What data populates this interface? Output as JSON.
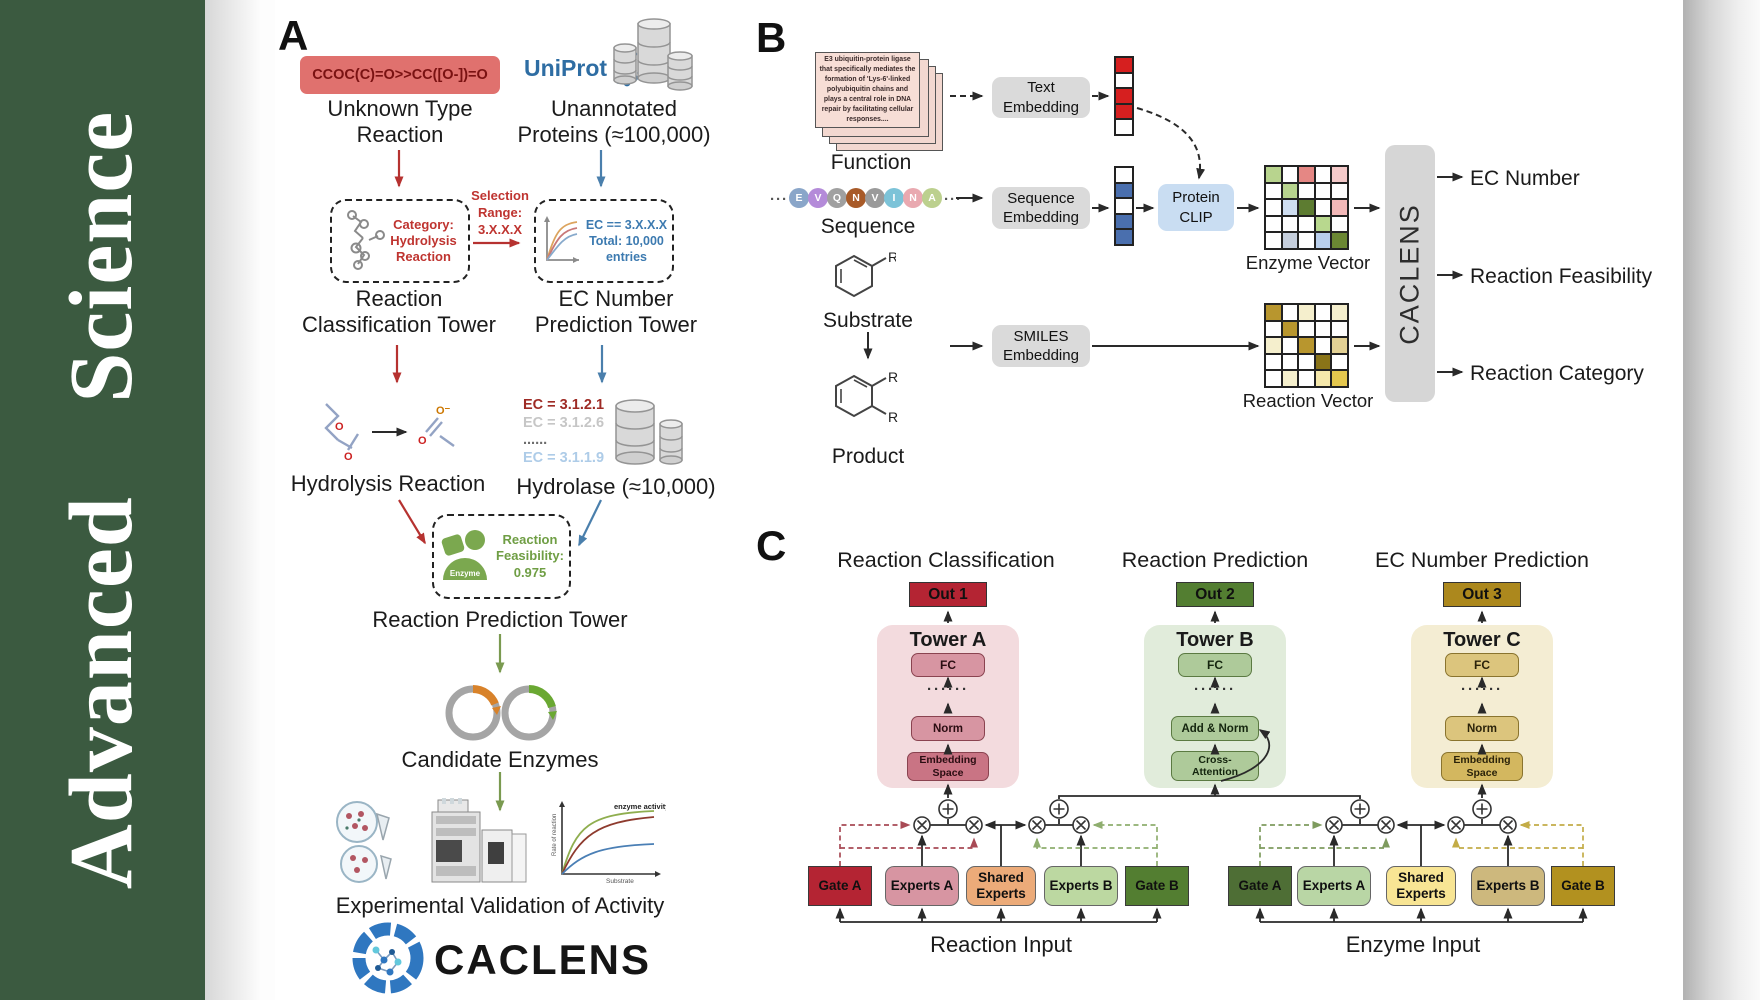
{
  "journal": {
    "title": "Advanced Science"
  },
  "panelA": {
    "label": "A",
    "smiles": "CCOC(C)=O>>CC([O-])=O",
    "unknown_reaction": "Unknown Type\nReaction",
    "uniprot": "UniProt",
    "unannotated": "Unannotated\nProteins (≈100,000)",
    "category_text": "Category:\nHydrolysis\nReaction",
    "selection_text": "Selection\nRange:\n3.X.X.X",
    "ec_box_text": "EC == 3.X.X.X\nTotal: 10,000\nentries",
    "classification_tower": "Reaction\nClassification Tower",
    "ec_tower": "EC Number\nPrediction Tower",
    "hydrolysis": "Hydrolysis Reaction",
    "ec_list": [
      {
        "text": "EC = 3.1.2.1",
        "color": "#9e2b25"
      },
      {
        "text": "EC = 3.1.2.6",
        "color": "#c6c6c6"
      },
      {
        "text": "......",
        "color": "#6d6d6d"
      },
      {
        "text": "EC = 3.1.1.9",
        "color": "#aecce8"
      }
    ],
    "hydrolase": "Hydrolase (≈10,000)",
    "enzyme_icon_label": "Enzyme",
    "feasibility_text": "Reaction\nFeasibility:\n0.975",
    "prediction_tower": "Reaction Prediction Tower",
    "candidates": "Candidate Enzymes",
    "activity_graph": {
      "title": "enzyme activity",
      "ylabel": "Rate of reaction",
      "xlabel": "Substrate"
    },
    "validation": "Experimental Validation of Activity",
    "brand": "CACLENS",
    "colors": {
      "smiles_bg": "#e0716e",
      "red": "#b63230",
      "blue": "#4a7fac",
      "green": "#7a9a50"
    }
  },
  "panelB": {
    "label": "B",
    "function_card": "E3 ubiquitin-protein ligase that specifically mediates the formation of 'Lys-6'-linked polyubiquitin chains and plays a central role in DNA repair by facilitating cellular responses....",
    "function_label": "Function",
    "sequence_label": "Sequence",
    "sequence_dots": "···",
    "sequence": [
      {
        "ch": "E",
        "c": "#8aa6c9"
      },
      {
        "ch": "V",
        "c": "#b48bd9"
      },
      {
        "ch": "Q",
        "c": "#a0a0a0"
      },
      {
        "ch": "N",
        "c": "#a85a28"
      },
      {
        "ch": "V",
        "c": "#9a9a9a"
      },
      {
        "ch": "I",
        "c": "#7cc3d8"
      },
      {
        "ch": "N",
        "c": "#e9a9b0"
      },
      {
        "ch": "A",
        "c": "#bcd08e"
      }
    ],
    "substrate_label": "Substrate",
    "product_label": "Product",
    "text_embedding": "Text\nEmbedding",
    "sequence_embedding": "Sequence\nEmbedding",
    "smiles_embedding": "SMILES\nEmbedding",
    "protein_clip": "Protein\nCLIP",
    "enzyme_vector_label": "Enzyme Vector",
    "reaction_vector_label": "Reaction Vector",
    "caclens": "CACLENS",
    "outputs": [
      "EC Number",
      "Reaction Feasibility",
      "Reaction Category"
    ],
    "text_vector": [
      "#d61f1f",
      "#ffffff",
      "#d61f1f",
      "#d61f1f",
      "#ffffff"
    ],
    "seq_vector": [
      "#ffffff",
      "#4a6fae",
      "#ffffff",
      "#4a6fae",
      "#4a6fae"
    ],
    "enzyme_matrix": [
      [
        "#b8d48e",
        "#ffffff",
        "#e58784",
        "#ffffff",
        "#f4c9c9"
      ],
      [
        "#ffffff",
        "#b8d48e",
        "#ffffff",
        "#ffffff",
        "#ffffff"
      ],
      [
        "#ffffff",
        "#cfdef1",
        "#5d7c31",
        "#ffffff",
        "#f2b8b8"
      ],
      [
        "#ffffff",
        "#ffffff",
        "#ffffff",
        "#b8d88e",
        "#ffffff"
      ],
      [
        "#ffffff",
        "#c6cfdd",
        "#ffffff",
        "#b9cfec",
        "#6b8733"
      ]
    ],
    "reaction_matrix": [
      [
        "#b8962e",
        "#ffffff",
        "#f5efcd",
        "#ffffff",
        "#f5efcd"
      ],
      [
        "#ffffff",
        "#b8962e",
        "#ffffff",
        "#ffffff",
        "#ffffff"
      ],
      [
        "#f5efcd",
        "#ffffff",
        "#b8962e",
        "#ffffff",
        "#e3d194"
      ],
      [
        "#ffffff",
        "#ffffff",
        "#ffffff",
        "#8a7418",
        "#ffffff"
      ],
      [
        "#ffffff",
        "#f5efcd",
        "#ffffff",
        "#f5e8ab",
        "#e4c74e"
      ]
    ]
  },
  "panelC": {
    "label": "C",
    "titles": [
      "Reaction Classification",
      "Reaction Prediction",
      "EC Number Prediction"
    ],
    "dots": "······",
    "towerA": {
      "name": "Tower A",
      "out": "Out 1",
      "fc": "FC",
      "norm": "Norm",
      "emb": "Embedding\nSpace"
    },
    "towerB": {
      "name": "Tower B",
      "out": "Out 2",
      "fc": "FC",
      "addnorm": "Add & Norm",
      "cross": "Cross-\nAttention"
    },
    "towerC": {
      "name": "Tower C",
      "out": "Out 3",
      "fc": "FC",
      "norm": "Norm",
      "emb": "Embedding\nSpace"
    },
    "reaction_group": {
      "gate_a": "Gate A",
      "experts_a": "Experts A",
      "shared": "Shared\nExperts",
      "experts_b": "Experts B",
      "gate_b": "Gate B",
      "label": "Reaction Input"
    },
    "enzyme_group": {
      "gate_a": "Gate A",
      "experts_a": "Experts A",
      "shared": "Shared\nExperts",
      "experts_b": "Experts B",
      "gate_b": "Gate B",
      "label": "Enzyme Input"
    }
  }
}
